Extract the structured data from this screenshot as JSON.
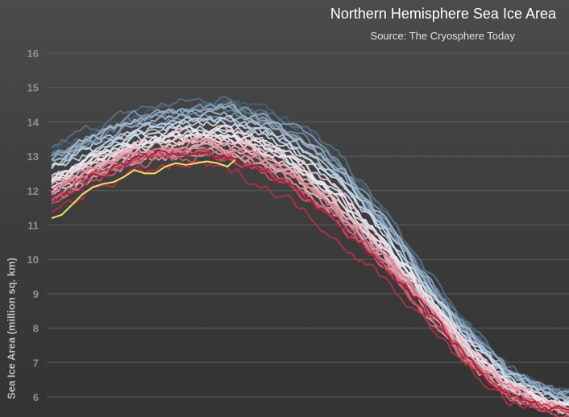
{
  "chart_data": {
    "type": "line",
    "title": "Northern Hemisphere Sea Ice Area",
    "subtitle": "Source: The Cryosphere Today",
    "xlabel": "",
    "ylabel": "Sea Ice Area (million sq. km)",
    "ylim": [
      5.5,
      16.3
    ],
    "yticks": [
      6,
      7,
      8,
      9,
      10,
      11,
      12,
      13,
      14,
      15,
      16
    ],
    "xlim": [
      0,
      1
    ],
    "grid": true,
    "legend": "none",
    "colors": {
      "coolest": "#2f4454",
      "cool": "#8ea6bc",
      "pale": "#e6eef8",
      "warm": "#f2b9c2",
      "hot": "#a81c34",
      "current": "#f4e15f"
    },
    "series_summary": [
      {
        "x": 0.0,
        "mean": 12.3
      },
      {
        "x": 0.08,
        "mean": 12.9
      },
      {
        "x": 0.16,
        "mean": 13.4
      },
      {
        "x": 0.24,
        "mean": 13.6
      },
      {
        "x": 0.32,
        "mean": 13.7
      },
      {
        "x": 0.4,
        "mean": 13.4
      },
      {
        "x": 0.48,
        "mean": 12.8
      },
      {
        "x": 0.56,
        "mean": 11.8
      },
      {
        "x": 0.64,
        "mean": 10.5
      },
      {
        "x": 0.72,
        "mean": 9.0
      },
      {
        "x": 0.8,
        "mean": 7.5
      },
      {
        "x": 0.88,
        "mean": 6.4
      },
      {
        "x": 0.95,
        "mean": 5.9
      },
      {
        "x": 1.0,
        "mean": 5.7
      }
    ],
    "current_year": {
      "x": [
        0.0,
        0.02,
        0.04,
        0.06,
        0.08,
        0.1,
        0.12,
        0.14,
        0.16,
        0.18,
        0.2,
        0.22,
        0.24,
        0.26,
        0.28,
        0.3,
        0.32,
        0.34,
        0.355
      ],
      "y": [
        11.2,
        11.3,
        11.6,
        11.9,
        12.1,
        12.2,
        12.25,
        12.4,
        12.6,
        12.5,
        12.5,
        12.7,
        12.8,
        12.75,
        12.8,
        12.85,
        12.8,
        12.7,
        12.9
      ]
    }
  }
}
